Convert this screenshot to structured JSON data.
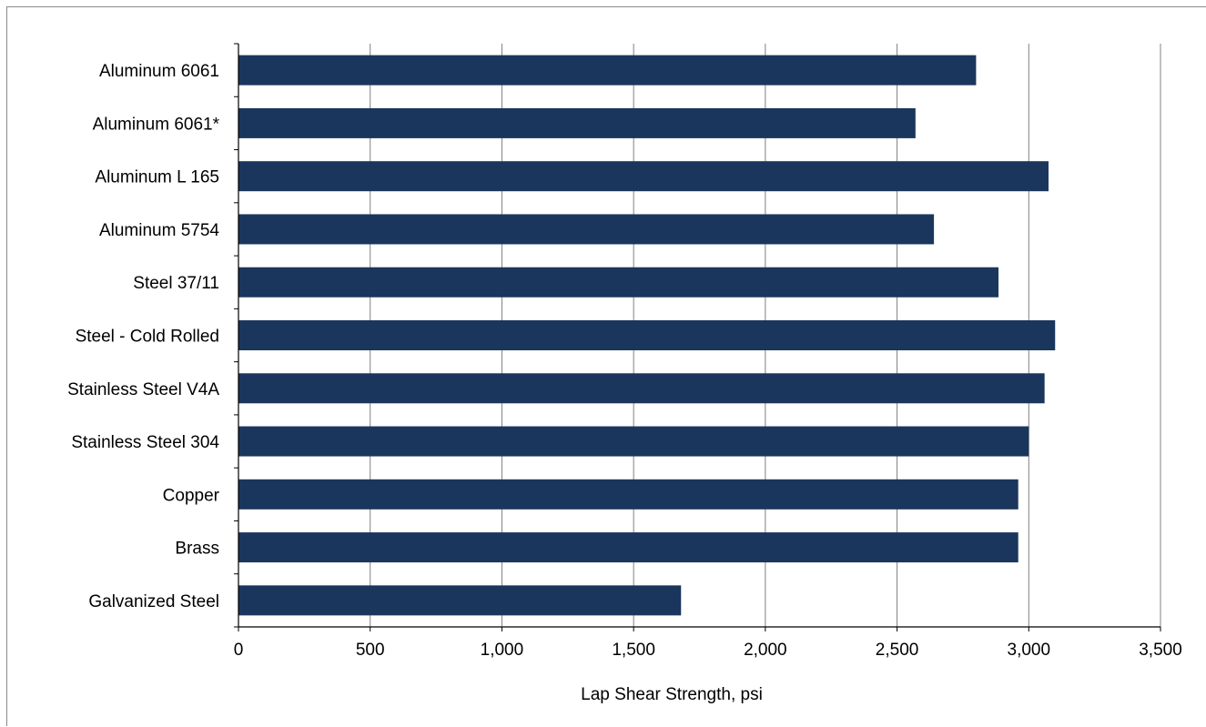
{
  "chart_data": {
    "type": "bar",
    "orientation": "horizontal",
    "title": "",
    "xlabel": "Lap Shear Strength, psi",
    "ylabel": "",
    "categories": [
      "Aluminum 6061",
      "Aluminum 6061*",
      "Aluminum L 165",
      "Aluminum 5754",
      "Steel 37/11",
      "Steel - Cold Rolled",
      "Stainless Steel V4A",
      "Stainless Steel 304",
      "Copper",
      "Brass",
      "Galvanized Steel"
    ],
    "values": [
      2800,
      2570,
      3075,
      2640,
      2885,
      3100,
      3060,
      3000,
      2960,
      2960,
      1680
    ],
    "xlim": [
      0,
      3500
    ],
    "xticks": [
      0,
      500,
      1000,
      1500,
      2000,
      2500,
      3000,
      3500
    ],
    "xtick_labels": [
      "0",
      "500",
      "1,000",
      "1,500",
      "2,000",
      "2,500",
      "3,000",
      "3,500"
    ],
    "grid": "vertical gridlines at each x tick",
    "legend": "none",
    "bar_color": "#1b365d",
    "gridline_color": "#808080",
    "axis_color": "#000000"
  }
}
